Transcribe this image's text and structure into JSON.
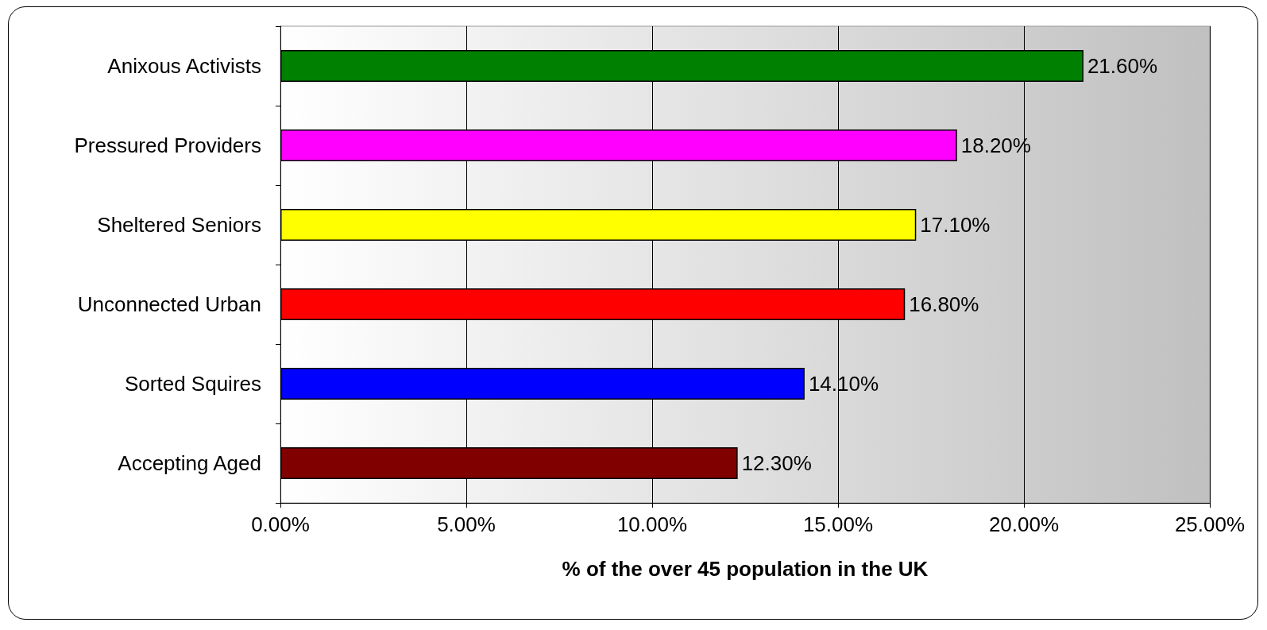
{
  "chart_data": {
    "type": "bar",
    "orientation": "horizontal",
    "xlabel": "% of the over 45 population in the UK",
    "categories": [
      "Anixous Activists",
      "Pressured Providers",
      "Sheltered Seniors",
      "Unconnected Urban",
      "Sorted Squires",
      "Accepting Aged"
    ],
    "values": [
      21.6,
      18.2,
      17.1,
      16.8,
      14.1,
      12.3
    ],
    "colors": [
      "#008000",
      "#ff00ff",
      "#ffff00",
      "#ff0000",
      "#0000ff",
      "#800000"
    ],
    "value_labels": [
      "21.60%",
      "18.20%",
      "17.10%",
      "16.80%",
      "14.10%",
      "12.30%"
    ],
    "xlim": [
      0,
      25
    ],
    "xticks": [
      {
        "value": 0,
        "label": "0.00%"
      },
      {
        "value": 5,
        "label": "5.00%"
      },
      {
        "value": 10,
        "label": "10.00%"
      },
      {
        "value": 15,
        "label": "15.00%"
      },
      {
        "value": 20,
        "label": "20.00%"
      },
      {
        "value": 25,
        "label": "25.00%"
      }
    ],
    "grid": "x"
  }
}
